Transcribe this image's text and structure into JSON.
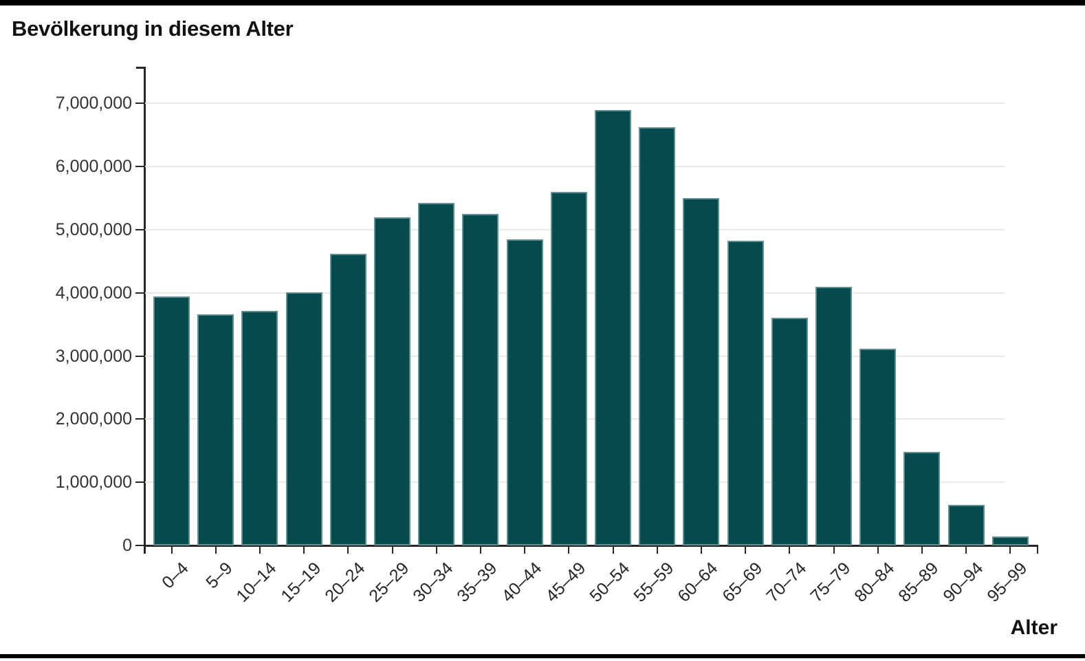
{
  "page": {
    "title": "Bevölkerung in diesem Alter",
    "x_axis_title": "Alter"
  },
  "chart_data": {
    "type": "bar",
    "title": "Bevölkerung in diesem Alter",
    "xlabel": "Alter",
    "ylabel": "",
    "categories": [
      "0–4",
      "5–9",
      "10–14",
      "15–19",
      "20–24",
      "25–29",
      "30–34",
      "35–39",
      "40–44",
      "45–49",
      "50–54",
      "55–59",
      "60–64",
      "65–69",
      "70–74",
      "75–79",
      "80–84",
      "85–89",
      "90–94",
      "95–99"
    ],
    "values": [
      3940000,
      3660000,
      3710000,
      4010000,
      4620000,
      5200000,
      5420000,
      5250000,
      4850000,
      5600000,
      6890000,
      6620000,
      5500000,
      4820000,
      3610000,
      4100000,
      3120000,
      1480000,
      640000,
      140000
    ],
    "ylim": [
      0,
      7570000
    ],
    "y_ticks": [
      {
        "value": 0,
        "label": "0"
      },
      {
        "value": 1000000,
        "label": "1,000,000"
      },
      {
        "value": 2000000,
        "label": "2,000,000"
      },
      {
        "value": 3000000,
        "label": "3,000,000"
      },
      {
        "value": 4000000,
        "label": "4,000,000"
      },
      {
        "value": 5000000,
        "label": "5,000,000"
      },
      {
        "value": 6000000,
        "label": "6,000,000"
      },
      {
        "value": 7000000,
        "label": "7,000,000"
      }
    ],
    "grid": true,
    "legend_position": "none",
    "bar_color": "#054a4c",
    "axis_color": "#262626",
    "grid_color": "#e9e9e9",
    "label_color": "#262626",
    "page_rule_color": "#000000"
  }
}
